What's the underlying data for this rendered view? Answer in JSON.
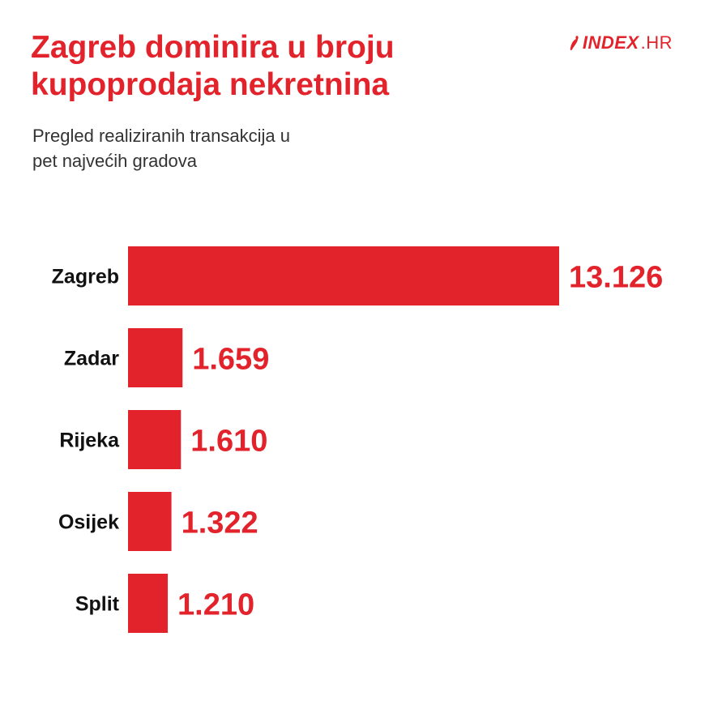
{
  "header": {
    "title_lines": [
      "Zagreb dominira u broju",
      "kupoprodaja nekretnina"
    ],
    "subtitle_lines": [
      "Pregled realiziranih transakcija u",
      "pet najvećih gradova"
    ]
  },
  "logo": {
    "brand": "INDEX",
    "tld": ".HR",
    "icon": "chili-pepper-icon"
  },
  "colors": {
    "accent": "#e3232b",
    "text": "#111111"
  },
  "chart_data": {
    "type": "bar",
    "orientation": "horizontal",
    "title": "Zagreb dominira u broju kupoprodaja nekretnina",
    "subtitle": "Pregled realiziranih transakcija u pet najvećih gradova",
    "categories": [
      "Zagreb",
      "Zadar",
      "Rijeka",
      "Osijek",
      "Split"
    ],
    "values": [
      13126,
      1659,
      1610,
      1322,
      1210
    ],
    "value_labels": [
      "13.126",
      "1.659",
      "1.610",
      "1.322",
      "1.210"
    ],
    "grid": false,
    "legend": "none"
  }
}
